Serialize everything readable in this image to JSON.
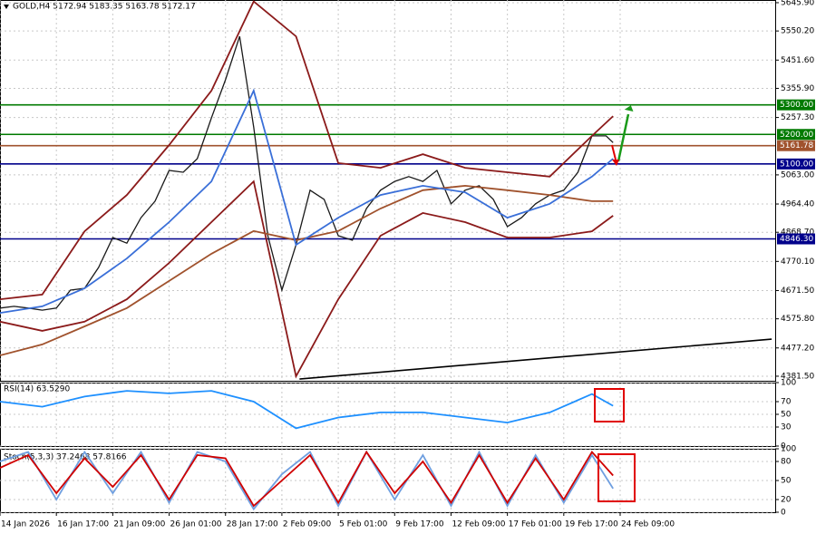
{
  "chart_data": [
    {
      "type": "line",
      "title": "GOLD,H4 5172.94 5183.35 5163.78 5172.17",
      "xlim": [
        0,
        220
      ],
      "xticks": [
        {
          "value": 0,
          "label": "14 Jan 2026"
        },
        {
          "value": 16,
          "label": "16 Jan 17:00"
        },
        {
          "value": 32,
          "label": "21 Jan 09:00"
        },
        {
          "value": 48,
          "label": "26 Jan 01:00"
        },
        {
          "value": 64,
          "label": "28 Jan 17:00"
        },
        {
          "value": 80,
          "label": "2 Feb 09:00"
        },
        {
          "value": 96,
          "label": "5 Feb 01:00"
        },
        {
          "value": 112,
          "label": "9 Feb 17:00"
        },
        {
          "value": 128,
          "label": "12 Feb 09:00"
        },
        {
          "value": 144,
          "label": "17 Feb 01:00"
        },
        {
          "value": 160,
          "label": "19 Feb 17:00"
        },
        {
          "value": 176,
          "label": "24 Feb 09:00"
        }
      ],
      "ylim": [
        4366,
        5655
      ],
      "yticks": [
        {
          "value": 5645.9,
          "label": "5645.90"
        },
        {
          "value": 5550.2,
          "label": "5550.20"
        },
        {
          "value": 5451.6,
          "label": "5451.60"
        },
        {
          "value": 5355.9,
          "label": "5355.90"
        },
        {
          "value": 5257.3,
          "label": "5257.30"
        },
        {
          "value": 5063,
          "label": "5063.00"
        },
        {
          "value": 4964.4,
          "label": "4964.40"
        },
        {
          "value": 4868.7,
          "label": "4868.70"
        },
        {
          "value": 4770.1,
          "label": "4770.10"
        },
        {
          "value": 4671.5,
          "label": "4671.50"
        },
        {
          "value": 4575.8,
          "label": "4575.80"
        },
        {
          "value": 4477.2,
          "label": "4477.20"
        },
        {
          "value": 4381.5,
          "label": "4381.50"
        }
      ],
      "grid": true,
      "series": [
        {
          "color": "#1a1a1a",
          "x": [
            0,
            4,
            8,
            12,
            16,
            20,
            24,
            28,
            32,
            36,
            40,
            44,
            48,
            52,
            56,
            60,
            64,
            68,
            72,
            76,
            80,
            84,
            88,
            92,
            96,
            100,
            104,
            108,
            112,
            116,
            120,
            124,
            128,
            132,
            136,
            140,
            144,
            148,
            152,
            156,
            160,
            164,
            168,
            172,
            174
          ],
          "values": [
            4612,
            4618,
            4612,
            4605,
            4612,
            4673,
            4679,
            4750,
            4851,
            4832,
            4918,
            4974,
            5078,
            5072,
            5118,
            5256,
            5385,
            5532,
            5225,
            4857,
            4673,
            4826,
            5011,
            4980,
            4857,
            4842,
            4949,
            5011,
            5041,
            5057,
            5041,
            5078,
            4965,
            5011,
            5026,
            4980,
            4888,
            4918,
            4965,
            4995,
            5011,
            5072,
            5195,
            5195,
            5172.17
          ]
        },
        {
          "color": "#8b1a1a",
          "x": [
            0,
            12,
            24,
            36,
            48,
            60,
            72,
            84,
            96,
            108,
            120,
            132,
            144,
            156,
            168,
            174
          ],
          "values": [
            4642,
            4658,
            4872,
            4995,
            5164,
            5348,
            5650,
            5532,
            5103,
            5087,
            5133,
            5087,
            5072,
            5057,
            5195,
            5262
          ]
        },
        {
          "color": "#8b1a1a",
          "x": [
            0,
            12,
            24,
            36,
            48,
            60,
            72,
            84,
            96,
            108,
            120,
            132,
            144,
            156,
            168,
            174
          ],
          "values": [
            4566,
            4535,
            4566,
            4642,
            4765,
            4903,
            5041,
            4381,
            4642,
            4857,
            4934,
            4903,
            4851,
            4851,
            4872,
            4925
          ]
        },
        {
          "color": "#a0522d",
          "x": [
            0,
            12,
            24,
            36,
            48,
            60,
            72,
            84,
            96,
            108,
            120,
            132,
            144,
            156,
            168,
            174
          ],
          "values": [
            4452,
            4489,
            4550,
            4612,
            4704,
            4796,
            4873,
            4842,
            4873,
            4949,
            5011,
            5026,
            5011,
            4995,
            4974,
            4974
          ]
        },
        {
          "color": "#3a6fd8",
          "x": [
            0,
            12,
            24,
            36,
            48,
            60,
            72,
            84,
            96,
            108,
            120,
            132,
            144,
            156,
            168,
            174
          ],
          "values": [
            4596,
            4618,
            4679,
            4780,
            4903,
            5041,
            5348,
            4826,
            4918,
            4995,
            5026,
            5004,
            4918,
            4965,
            5057,
            5118
          ]
        }
      ],
      "levels": [
        {
          "value": 5300,
          "label": "5300.00",
          "color": "#007a00"
        },
        {
          "value": 5200,
          "label": "5200.00",
          "color": "#007a00"
        },
        {
          "value": 5161.78,
          "label": "5161.78",
          "color": "#a0522d"
        },
        {
          "value": 5100,
          "label": "5100.00",
          "color": "#00008b"
        },
        {
          "value": 4846.3,
          "label": "4846.30",
          "color": "#00008b"
        }
      ],
      "trendline": {
        "color": "#000000",
        "x": [
          85,
          219
        ],
        "values": [
          4372,
          4507
        ]
      }
    },
    {
      "type": "line",
      "title": "RSI(14) 63.5290",
      "xlim": [
        0,
        220
      ],
      "ylim": [
        0,
        100
      ],
      "yticks": [
        0,
        30,
        50,
        70,
        100
      ],
      "series": [
        {
          "color": "#1e90ff",
          "x": [
            0,
            12,
            24,
            36,
            48,
            60,
            72,
            84,
            96,
            108,
            120,
            132,
            144,
            156,
            168,
            174
          ],
          "values": [
            70,
            62,
            78,
            87,
            83,
            87,
            70,
            28,
            45,
            53,
            53,
            45,
            37,
            53,
            82,
            63.5
          ]
        }
      ]
    },
    {
      "type": "line",
      "title": "Stoch(5,3,3) 37.2468 57.8166",
      "xlim": [
        0,
        220
      ],
      "ylim": [
        0,
        100
      ],
      "yticks": [
        0,
        20,
        50,
        80,
        100
      ],
      "series": [
        {
          "color": "#6f9fe0",
          "x": [
            0,
            8,
            16,
            24,
            32,
            40,
            48,
            56,
            64,
            72,
            80,
            88,
            96,
            104,
            112,
            120,
            128,
            136,
            144,
            152,
            160,
            168,
            174
          ],
          "values": [
            80,
            95,
            20,
            95,
            30,
            95,
            15,
            95,
            80,
            5,
            60,
            95,
            10,
            95,
            20,
            90,
            10,
            95,
            10,
            90,
            15,
            90,
            37.2468
          ]
        },
        {
          "color": "#d00000",
          "x": [
            0,
            8,
            16,
            24,
            32,
            40,
            48,
            56,
            64,
            72,
            80,
            88,
            96,
            104,
            112,
            120,
            128,
            136,
            144,
            152,
            160,
            168,
            174
          ],
          "values": [
            70,
            90,
            30,
            85,
            40,
            90,
            20,
            90,
            85,
            10,
            50,
            90,
            15,
            95,
            30,
            80,
            15,
            90,
            15,
            85,
            20,
            95,
            57.8166
          ]
        }
      ]
    }
  ]
}
